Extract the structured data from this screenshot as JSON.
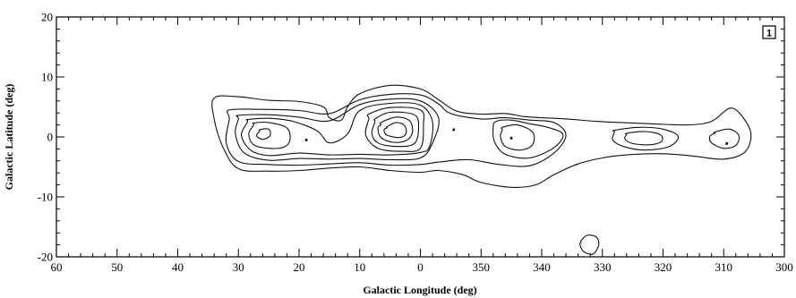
{
  "chart_data": {
    "type": "contour",
    "xlabel": "Galactic Longitude (deg)",
    "ylabel": "Galactic Latitude (deg)",
    "panel_label": "1",
    "xlim": [
      60,
      300
    ],
    "ylim": [
      -20,
      20
    ],
    "x_reversed": true,
    "x_wraps_at": 360,
    "x_ticks": [
      {
        "value": 60,
        "label": "60"
      },
      {
        "value": 50,
        "label": "50"
      },
      {
        "value": 40,
        "label": "40"
      },
      {
        "value": 30,
        "label": "30"
      },
      {
        "value": 20,
        "label": "20"
      },
      {
        "value": 10,
        "label": "10"
      },
      {
        "value": 0,
        "label": "0"
      },
      {
        "value": 350,
        "label": "350"
      },
      {
        "value": 340,
        "label": "340"
      },
      {
        "value": 330,
        "label": "330"
      },
      {
        "value": 320,
        "label": "320"
      },
      {
        "value": 310,
        "label": "310"
      },
      {
        "value": 300,
        "label": "300"
      }
    ],
    "y_ticks": [
      {
        "value": 20,
        "label": "20"
      },
      {
        "value": 10,
        "label": "10"
      },
      {
        "value": 0,
        "label": "0"
      },
      {
        "value": -10,
        "label": "-10"
      },
      {
        "value": -20,
        "label": "-20"
      }
    ],
    "grid": false,
    "contours": [
      {
        "level": 1,
        "points": [
          [
            34,
            6.5
          ],
          [
            30,
            6.7
          ],
          [
            25,
            6.1
          ],
          [
            20,
            5.9
          ],
          [
            16,
            5.0
          ],
          [
            15,
            3.2
          ],
          [
            13,
            2.8
          ],
          [
            12,
            5.0
          ],
          [
            10,
            7.2
          ],
          [
            5,
            8.6
          ],
          [
            0,
            8.0
          ],
          [
            357,
            6.2
          ],
          [
            354,
            4.3
          ],
          [
            350,
            3.8
          ],
          [
            346,
            3.9
          ],
          [
            343,
            3.4
          ],
          [
            340,
            3.2
          ],
          [
            336,
            3.0
          ],
          [
            331,
            2.6
          ],
          [
            327,
            2.4
          ],
          [
            322,
            2.2
          ],
          [
            316,
            2.0
          ],
          [
            312,
            2.6
          ],
          [
            309,
            4.8
          ],
          [
            307,
            3.5
          ],
          [
            305.5,
            0.5
          ],
          [
            306.5,
            -2.5
          ],
          [
            310,
            -3.7
          ],
          [
            315,
            -3.2
          ],
          [
            320,
            -2.8
          ],
          [
            326,
            -3.0
          ],
          [
            330,
            -3.5
          ],
          [
            334,
            -4.5
          ],
          [
            338,
            -6.3
          ],
          [
            341,
            -8.0
          ],
          [
            345,
            -8.4
          ],
          [
            350,
            -7.6
          ],
          [
            353,
            -6.3
          ],
          [
            357,
            -5.6
          ],
          [
            0,
            -5.9
          ],
          [
            5,
            -5.6
          ],
          [
            10,
            -5.0
          ],
          [
            15,
            -5.2
          ],
          [
            20,
            -5.6
          ],
          [
            25,
            -5.7
          ],
          [
            30,
            -5.3
          ],
          [
            32.5,
            -1.8
          ],
          [
            34,
            3.0
          ]
        ]
      },
      {
        "level": 2,
        "points": [
          [
            31.5,
            4.5
          ],
          [
            26,
            4.6
          ],
          [
            20,
            4.4
          ],
          [
            15,
            3.9
          ],
          [
            10,
            6.2
          ],
          [
            5,
            7.1
          ],
          [
            0,
            7.0
          ],
          [
            357,
            5.5
          ],
          [
            355,
            3.9
          ],
          [
            350,
            3.0
          ],
          [
            346,
            3.2
          ],
          [
            342,
            2.8
          ],
          [
            338,
            2.4
          ],
          [
            336,
            0.3
          ],
          [
            338,
            -2.7
          ],
          [
            342,
            -4.8
          ],
          [
            347,
            -4.6
          ],
          [
            352,
            -3.8
          ],
          [
            357,
            -4.2
          ],
          [
            0,
            -4.6
          ],
          [
            5,
            -4.7
          ],
          [
            10,
            -4.3
          ],
          [
            15,
            -4.5
          ],
          [
            20,
            -4.7
          ],
          [
            25,
            -4.6
          ],
          [
            30,
            -4.1
          ],
          [
            32,
            -1.0
          ],
          [
            31.5,
            3.0
          ]
        ]
      },
      {
        "level": 3,
        "points": [
          [
            30,
            3.6
          ],
          [
            25,
            3.7
          ],
          [
            20,
            3.3
          ],
          [
            15,
            2.7
          ],
          [
            10,
            5.4
          ],
          [
            5,
            6.3
          ],
          [
            0,
            6.0
          ],
          [
            357,
            3.2
          ],
          [
            358,
            -1.0
          ],
          [
            0,
            -3.5
          ],
          [
            5,
            -3.8
          ],
          [
            10,
            -3.6
          ],
          [
            15,
            -3.7
          ],
          [
            20,
            -3.6
          ],
          [
            25,
            -3.9
          ],
          [
            29,
            -2.7
          ],
          [
            30.5,
            0.5
          ],
          [
            30,
            3.0
          ]
        ]
      },
      {
        "level": 4,
        "points": [
          [
            28.5,
            2.9
          ],
          [
            25,
            3.1
          ],
          [
            21,
            2.6
          ],
          [
            17,
            1.0
          ],
          [
            15,
            -1.0
          ],
          [
            12,
            0.5
          ],
          [
            10,
            4.4
          ],
          [
            5,
            5.6
          ],
          [
            0,
            5.3
          ],
          [
            358,
            2.5
          ],
          [
            358.5,
            -1.6
          ],
          [
            0,
            -2.6
          ],
          [
            5,
            -3.0
          ],
          [
            10,
            -2.9
          ],
          [
            15,
            -3.0
          ],
          [
            20,
            -2.7
          ],
          [
            25,
            -3.1
          ],
          [
            28,
            -2.2
          ],
          [
            29.5,
            0.3
          ],
          [
            28.5,
            2.5
          ]
        ]
      },
      {
        "level": 5,
        "points": [
          [
            27.5,
            2.3
          ],
          [
            25,
            2.4
          ],
          [
            22,
            1.5
          ],
          [
            21.5,
            -0.5
          ],
          [
            22.5,
            -1.7
          ],
          [
            25,
            -1.9
          ],
          [
            27.5,
            -1.3
          ],
          [
            28.3,
            0.5
          ],
          [
            27.5,
            2.0
          ]
        ]
      },
      {
        "level": 6,
        "points": [
          [
            26.5,
            1.2
          ],
          [
            25,
            1.3
          ],
          [
            24.8,
            0.2
          ],
          [
            26,
            -0.4
          ],
          [
            27,
            0.2
          ],
          [
            26.5,
            1.0
          ]
        ]
      },
      {
        "level": 5,
        "points": [
          [
            8.5,
            3.8
          ],
          [
            5,
            4.9
          ],
          [
            0,
            4.5
          ],
          [
            359.5,
            2.0
          ],
          [
            0,
            -1.9
          ],
          [
            3,
            -2.4
          ],
          [
            7,
            -1.9
          ],
          [
            9,
            0.3
          ],
          [
            8.5,
            3.0
          ]
        ]
      },
      {
        "level": 6,
        "points": [
          [
            7.5,
            3.0
          ],
          [
            5,
            4.1
          ],
          [
            1,
            3.7
          ],
          [
            0.3,
            1.6
          ],
          [
            1,
            -1.1
          ],
          [
            4,
            -1.6
          ],
          [
            7,
            -1.0
          ],
          [
            8,
            0.6
          ],
          [
            7.5,
            2.5
          ]
        ]
      },
      {
        "level": 7,
        "points": [
          [
            6.5,
            2.4
          ],
          [
            4,
            3.3
          ],
          [
            1.8,
            2.7
          ],
          [
            1.3,
            0.8
          ],
          [
            2.3,
            -0.6
          ],
          [
            4.5,
            -0.9
          ],
          [
            6.5,
            -0.1
          ],
          [
            7,
            1.5
          ],
          [
            6.5,
            2.0
          ]
        ]
      },
      {
        "level": 8,
        "points": [
          [
            5.5,
            1.7
          ],
          [
            4,
            2.4
          ],
          [
            2.6,
            1.9
          ],
          [
            2.4,
            0.5
          ],
          [
            3.5,
            -0.1
          ],
          [
            5.5,
            0.3
          ],
          [
            6,
            1.2
          ],
          [
            5.5,
            1.5
          ]
        ]
      },
      {
        "level": 3,
        "points": [
          [
            347.5,
            2.6
          ],
          [
            345,
            2.8
          ],
          [
            342,
            2.2
          ],
          [
            339,
            1.6
          ],
          [
            336.5,
            0.4
          ],
          [
            338,
            -1.8
          ],
          [
            342,
            -3.5
          ],
          [
            346,
            -2.9
          ],
          [
            347.8,
            -0.8
          ],
          [
            348,
            1.6
          ]
        ]
      },
      {
        "level": 4,
        "points": [
          [
            346.5,
            1.6
          ],
          [
            344,
            2.0
          ],
          [
            341.5,
            0.8
          ],
          [
            341.5,
            -1.3
          ],
          [
            343.5,
            -2.2
          ],
          [
            346,
            -1.6
          ],
          [
            346.8,
            0.0
          ],
          [
            346.5,
            1.2
          ]
        ]
      },
      {
        "level": 2,
        "points": [
          [
            328,
            1.1
          ],
          [
            324,
            1.6
          ],
          [
            320,
            1.3
          ],
          [
            317.5,
            0.1
          ],
          [
            319,
            -1.6
          ],
          [
            323,
            -2.2
          ],
          [
            326.5,
            -1.6
          ],
          [
            328.3,
            -0.5
          ],
          [
            328,
            0.8
          ]
        ]
      },
      {
        "level": 3,
        "points": [
          [
            326,
            0.6
          ],
          [
            323,
            0.9
          ],
          [
            320.5,
            0.4
          ],
          [
            320.2,
            -0.7
          ],
          [
            322,
            -1.3
          ],
          [
            325,
            -1.1
          ],
          [
            326.3,
            -0.3
          ],
          [
            326,
            0.4
          ]
        ]
      },
      {
        "level": 2,
        "points": [
          [
            311.5,
            0.8
          ],
          [
            309,
            1.3
          ],
          [
            307.5,
            0.2
          ],
          [
            308,
            -1.4
          ],
          [
            310,
            -1.9
          ],
          [
            312,
            -1.0
          ],
          [
            312.3,
            0.1
          ],
          [
            311.5,
            0.6
          ]
        ]
      },
      {
        "level": 1,
        "points": [
          [
            333.5,
            -17.3
          ],
          [
            332.5,
            -16.4
          ],
          [
            331,
            -16.7
          ],
          [
            330.6,
            -18.0
          ],
          [
            331.5,
            -19.5
          ],
          [
            333,
            -19.2
          ],
          [
            333.7,
            -18.0
          ],
          [
            333.5,
            -17.5
          ]
        ]
      }
    ],
    "peak_marks": [
      {
        "x": 18.8,
        "y": -0.5
      },
      {
        "x": 354.5,
        "y": 1.2
      },
      {
        "x": 345.0,
        "y": -0.2
      },
      {
        "x": 309.5,
        "y": -1.1
      }
    ]
  }
}
